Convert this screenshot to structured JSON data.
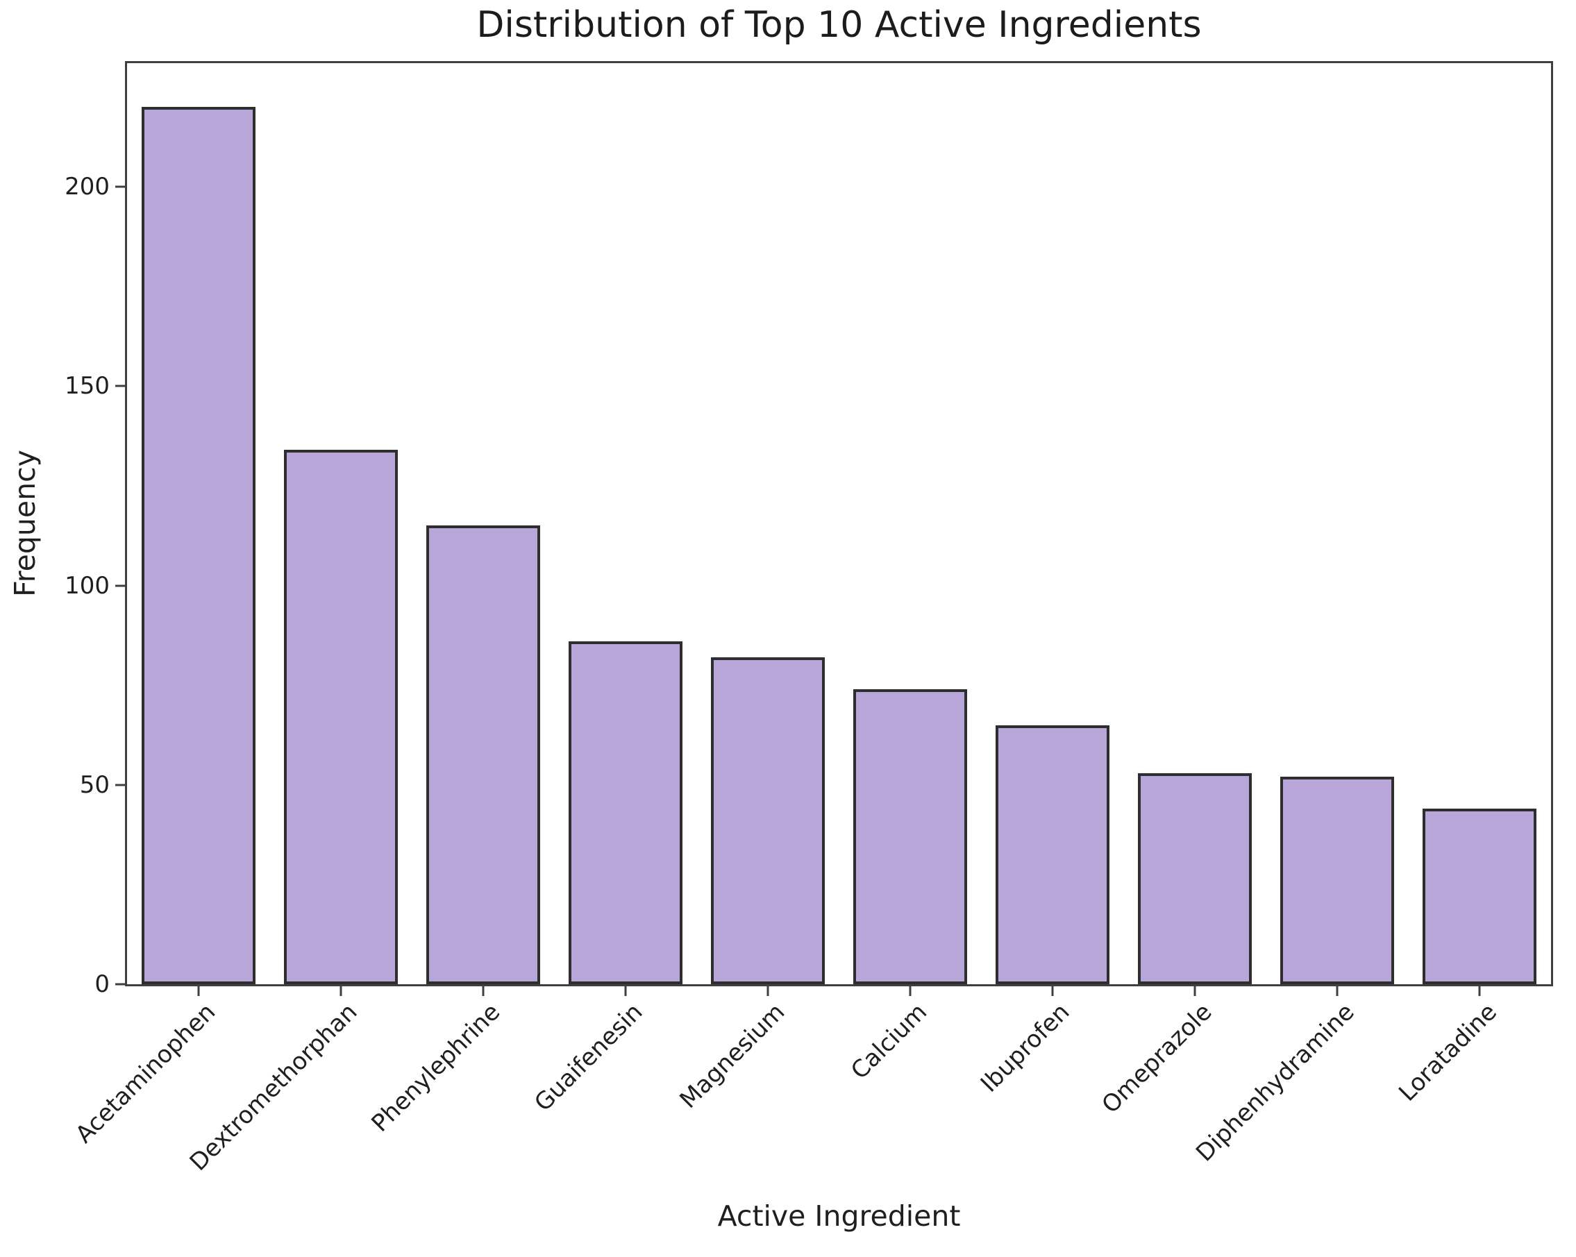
{
  "chart_data": {
    "type": "bar",
    "title": "Distribution of Top 10 Active Ingredients",
    "xlabel": "Active Ingredient",
    "ylabel": "Frequency",
    "categories": [
      "Acetaminophen",
      "Dextromethorphan",
      "Phenylephrine",
      "Guaifenesin",
      "Magnesium",
      "Calcium",
      "Ibuprofen",
      "Omeprazole",
      "Diphenhydramine",
      "Loratadine"
    ],
    "values": [
      220,
      134,
      115,
      86,
      82,
      74,
      65,
      53,
      52,
      44
    ],
    "yticks": [
      0,
      50,
      100,
      150,
      200
    ],
    "ylim": [
      0,
      231
    ],
    "grid": false,
    "legend": "none",
    "x_tick_rotation": 45,
    "bar_width_fraction": 0.8,
    "bar_color": "#b8a6d8",
    "bar_edge_color": "#2e2e2e",
    "axis_color": "#3f3f3f",
    "text_color": "#1f1f1f"
  }
}
